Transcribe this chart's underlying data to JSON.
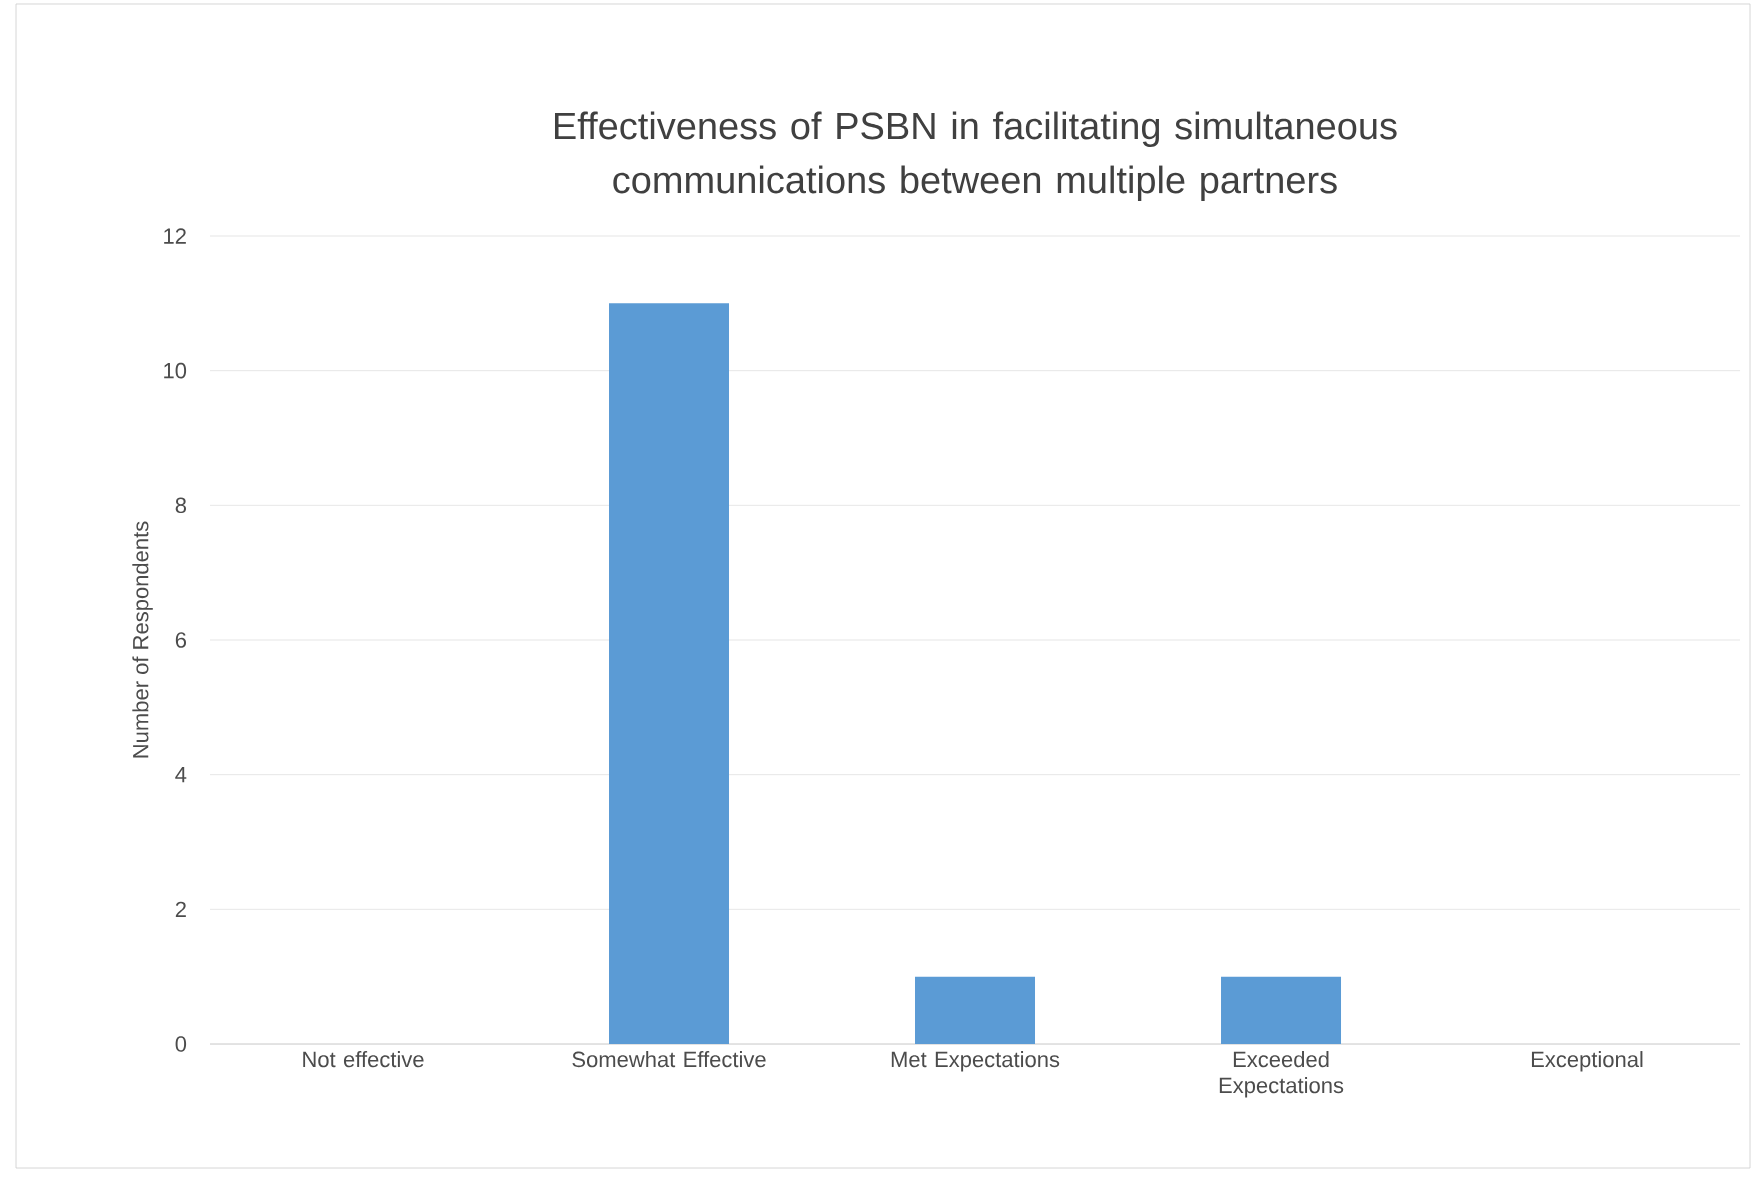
{
  "chart_data": {
    "type": "bar",
    "title": "Effectiveness of PSBN in facilitating simultaneous communications between multiple partners",
    "ylabel": "Number of Respondents",
    "categories": [
      "Not effective",
      "Somewhat Effective",
      "Met Expectations",
      "Exceeded Expectations",
      "Exceptional"
    ],
    "values": [
      0,
      11,
      1,
      1,
      0
    ],
    "color": "#5b9bd5",
    "ylim": [
      0,
      12
    ],
    "yticks": [
      0,
      2,
      4,
      6,
      8,
      10,
      12
    ],
    "grid": "y"
  }
}
